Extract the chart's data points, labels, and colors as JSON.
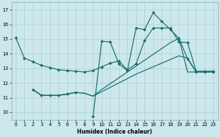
{
  "xlabel": "Humidex (Indice chaleur)",
  "background_color": "#cce8ec",
  "grid_color": "#aacdd4",
  "line_color": "#1a6e6a",
  "xlim": [
    -0.5,
    23.5
  ],
  "ylim": [
    9.5,
    17.5
  ],
  "yticks": [
    10,
    11,
    12,
    13,
    14,
    15,
    16,
    17
  ],
  "xticks": [
    0,
    1,
    2,
    3,
    4,
    5,
    6,
    7,
    8,
    9,
    10,
    11,
    12,
    13,
    14,
    15,
    16,
    17,
    18,
    19,
    20,
    21,
    22,
    23
  ],
  "s1_x": [
    0,
    1,
    2,
    3,
    4,
    5,
    6,
    7,
    8,
    9,
    10,
    11,
    12,
    13,
    14,
    15,
    16,
    17,
    18,
    19,
    20,
    21,
    22,
    23
  ],
  "s1_y": [
    15.1,
    13.7,
    13.45,
    13.2,
    13.05,
    12.9,
    12.85,
    12.8,
    12.75,
    12.85,
    13.1,
    13.35,
    13.5,
    12.9,
    13.3,
    14.9,
    15.75,
    15.75,
    15.75,
    14.8,
    14.75,
    12.8,
    12.8,
    12.8
  ],
  "s2_x": [
    2,
    3,
    4,
    5,
    6,
    7,
    9,
    10,
    11,
    12,
    13,
    14,
    15,
    16,
    17,
    18,
    19,
    20,
    21,
    22,
    23
  ],
  "s2_y": [
    11.55,
    11.15,
    11.15,
    11.15,
    11.25,
    11.35,
    9.7,
    14.85,
    14.8,
    13.3,
    12.85,
    15.75,
    15.65,
    16.8,
    16.2,
    15.65,
    15.05,
    13.65,
    12.75,
    12.75,
    12.75
  ],
  "s3_x": [
    2,
    3,
    4,
    5,
    6,
    7,
    8,
    9,
    10,
    11,
    12,
    13,
    14,
    15,
    16,
    17,
    18,
    19,
    20,
    21,
    22,
    23
  ],
  "s3_y": [
    11.55,
    11.15,
    11.15,
    11.15,
    11.25,
    11.35,
    11.3,
    11.1,
    11.4,
    11.7,
    12.0,
    12.3,
    12.6,
    12.85,
    13.1,
    13.35,
    13.6,
    13.85,
    13.7,
    12.75,
    12.75,
    12.75
  ],
  "s4_x": [
    2,
    3,
    4,
    5,
    6,
    7,
    8,
    9,
    10,
    11,
    12,
    13,
    14,
    15,
    16,
    17,
    18,
    19,
    20,
    21,
    22,
    23
  ],
  "s4_y": [
    11.55,
    11.15,
    11.15,
    11.15,
    11.25,
    11.35,
    11.3,
    11.1,
    11.55,
    11.95,
    12.35,
    12.75,
    13.15,
    13.55,
    13.95,
    14.35,
    14.75,
    15.05,
    12.75,
    12.75,
    12.75,
    12.75
  ]
}
